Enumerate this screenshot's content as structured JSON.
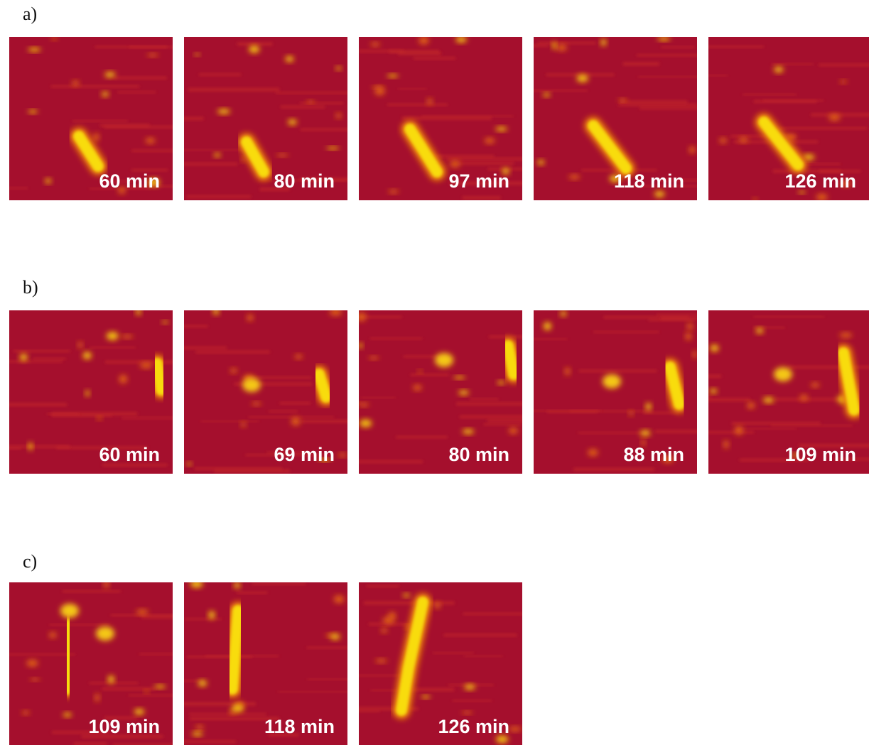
{
  "panels": [
    {
      "label": "a)",
      "frames": [
        {
          "time": "60 min"
        },
        {
          "time": "80 min"
        },
        {
          "time": "97 min"
        },
        {
          "time": "118 min"
        },
        {
          "time": "126 min"
        }
      ]
    },
    {
      "label": "b)",
      "frames": [
        {
          "time": "60 min"
        },
        {
          "time": "69 min"
        },
        {
          "time": "80 min"
        },
        {
          "time": "88 min"
        },
        {
          "time": "109 min"
        }
      ]
    },
    {
      "label": "c)",
      "frames": [
        {
          "time": "109 min"
        },
        {
          "time": "118 min"
        },
        {
          "time": "126 min"
        }
      ]
    }
  ]
}
